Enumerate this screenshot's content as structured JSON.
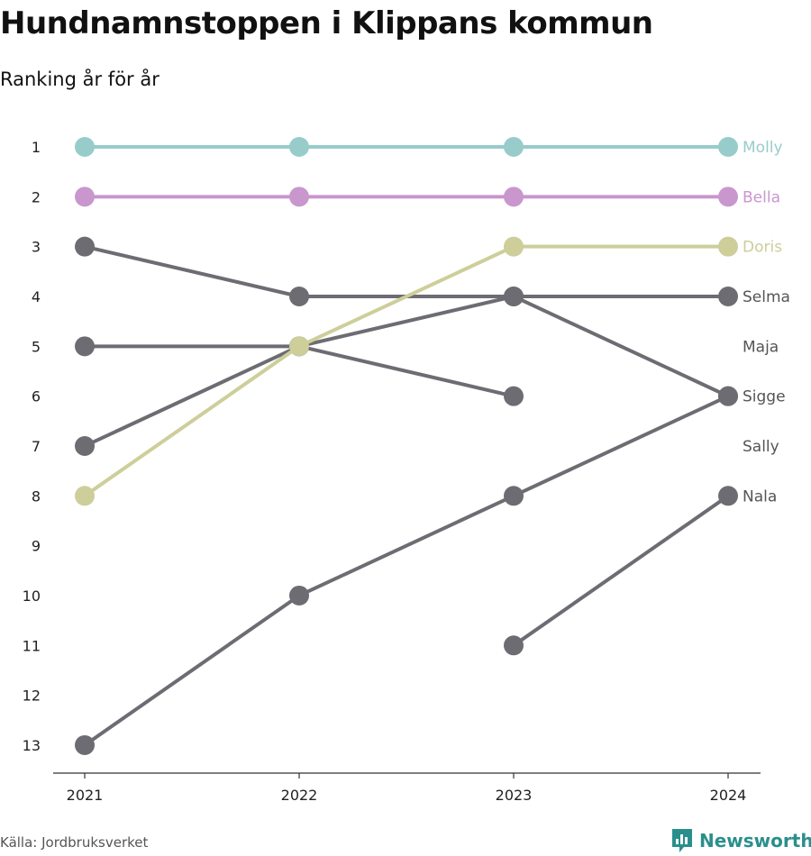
{
  "title": "Hundnamnstoppen i Klippans kommun",
  "subtitle": "Ranking år för år",
  "source": "Källa: Jordbruksverket",
  "brand": {
    "name": "Newsworthy",
    "icon": "newsworthy-logo-icon",
    "color": "#2a8f8c"
  },
  "chart_data": {
    "type": "line",
    "title": "Hundnamnstoppen i Klippans kommun",
    "subtitle": "Ranking år för år",
    "x": [
      2021,
      2022,
      2023,
      2024
    ],
    "x_tick_labels": [
      "2021",
      "2022",
      "2023",
      "2024"
    ],
    "y_tick_labels": [
      "1",
      "2",
      "3",
      "4",
      "5",
      "6",
      "7",
      "8",
      "9",
      "10",
      "11",
      "12",
      "13"
    ],
    "ylim": [
      1,
      13
    ],
    "y_inverted": true,
    "grid": false,
    "series": [
      {
        "name": "Molly",
        "color": "#97cccb",
        "values": [
          1,
          1,
          1,
          1
        ]
      },
      {
        "name": "Bella",
        "color": "#c996cd",
        "values": [
          2,
          2,
          2,
          2
        ]
      },
      {
        "name": "Doris",
        "color": "#cdce9a",
        "values": [
          8,
          5,
          3,
          3
        ]
      },
      {
        "name": "Selma",
        "color": "#6d6c73",
        "values": [
          7,
          5,
          4,
          4
        ]
      },
      {
        "name": "Maja",
        "color": "#6d6c73",
        "values": [
          5,
          5,
          6,
          null
        ]
      },
      {
        "name": "Sigge",
        "color": "#6d6c73",
        "values": [
          13,
          10,
          8,
          6
        ]
      },
      {
        "name": "Sally",
        "color": "#6d6c73",
        "values": [
          3,
          4,
          4,
          6
        ]
      },
      {
        "name": "Nala",
        "color": "#6d6c73",
        "values": [
          null,
          null,
          11,
          8
        ]
      }
    ],
    "end_labels": [
      {
        "name": "Molly",
        "rank": 1,
        "color": "#97cccb"
      },
      {
        "name": "Bella",
        "rank": 2,
        "color": "#c996cd"
      },
      {
        "name": "Doris",
        "rank": 3,
        "color": "#cdce9a"
      },
      {
        "name": "Selma",
        "rank": 4,
        "color": "#555555"
      },
      {
        "name": "Maja",
        "rank": 5,
        "color": "#555555"
      },
      {
        "name": "Sigge",
        "rank": 6,
        "color": "#555555"
      },
      {
        "name": "Sally",
        "rank": 7,
        "color": "#555555"
      },
      {
        "name": "Nala",
        "rank": 8,
        "color": "#555555"
      }
    ]
  }
}
